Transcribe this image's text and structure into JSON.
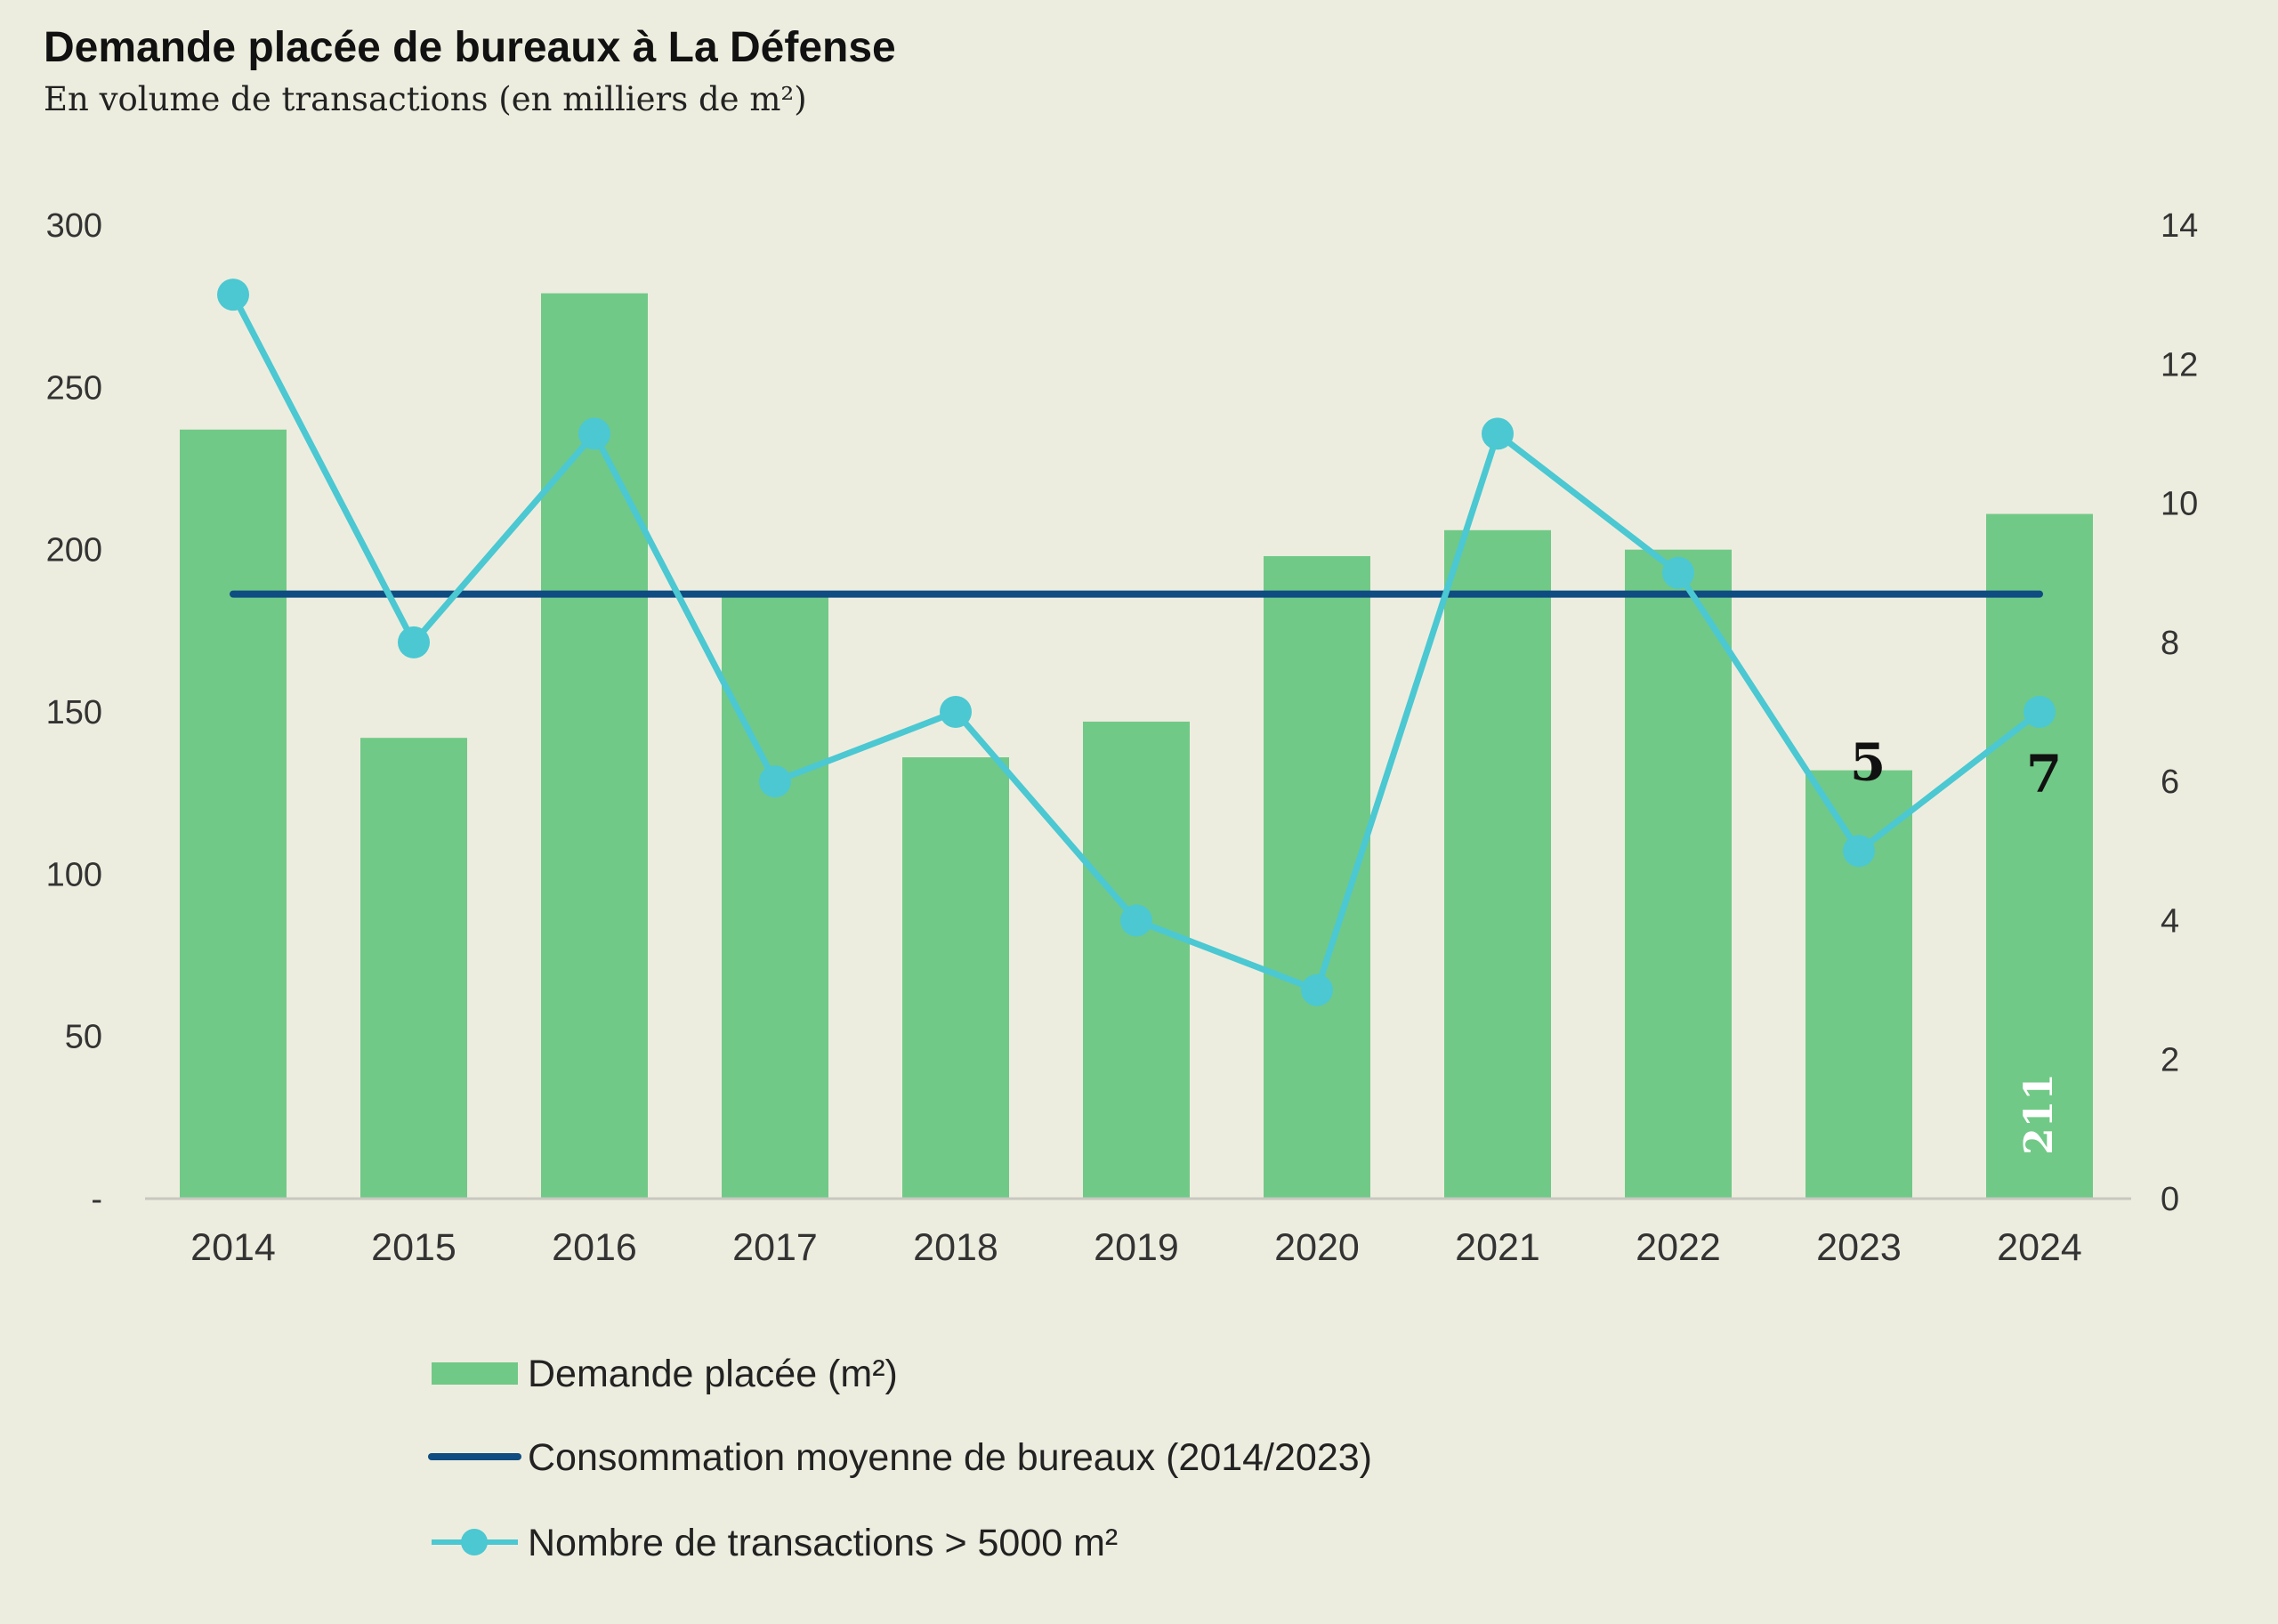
{
  "chart_data": {
    "type": "bar",
    "title": "Demande placée de bureaux à La Défense",
    "subtitle": "En volume de transactions (en milliers de m²)",
    "categories": [
      "2014",
      "2015",
      "2016",
      "2017",
      "2018",
      "2019",
      "2020",
      "2021",
      "2022",
      "2023",
      "2024"
    ],
    "series": [
      {
        "name": "Demande placée (m²)",
        "type": "bar",
        "axis": "left",
        "color": "#71C987",
        "values": [
          237,
          142,
          279,
          186,
          136,
          147,
          198,
          206,
          200,
          132,
          211
        ]
      },
      {
        "name": "Consommation moyenne de bureaux (2014/2023)",
        "type": "line",
        "axis": "left",
        "color": "#0F4C81",
        "values": [
          186.3,
          186.3,
          186.3,
          186.3,
          186.3,
          186.3,
          186.3,
          186.3,
          186.3,
          186.3,
          186.3
        ]
      },
      {
        "name": "Nombre de transactions > 5000 m²",
        "type": "line-markers",
        "axis": "right",
        "color": "#4BC8D2",
        "values": [
          13,
          8,
          11,
          6,
          7,
          4,
          3,
          11,
          9,
          5,
          7
        ]
      }
    ],
    "y_left": {
      "min": 0,
      "max": 300,
      "ticks": [
        0,
        50,
        100,
        150,
        200,
        250,
        300
      ],
      "tick_labels": [
        "-",
        "50",
        "100",
        "150",
        "200",
        "250",
        "300"
      ]
    },
    "y_right": {
      "min": 0,
      "max": 14,
      "ticks": [
        0,
        2,
        4,
        6,
        8,
        10,
        12,
        14
      ],
      "tick_labels": [
        "0",
        "2",
        "4",
        "6",
        "8",
        "10",
        "12",
        "14"
      ]
    },
    "grid": false,
    "legend_position": "bottom",
    "annotations": [
      {
        "text": "5",
        "category": "2023"
      },
      {
        "text": "7",
        "category": "2024"
      }
    ],
    "bar_labels": [
      {
        "text": "211",
        "category": "2024"
      }
    ]
  }
}
